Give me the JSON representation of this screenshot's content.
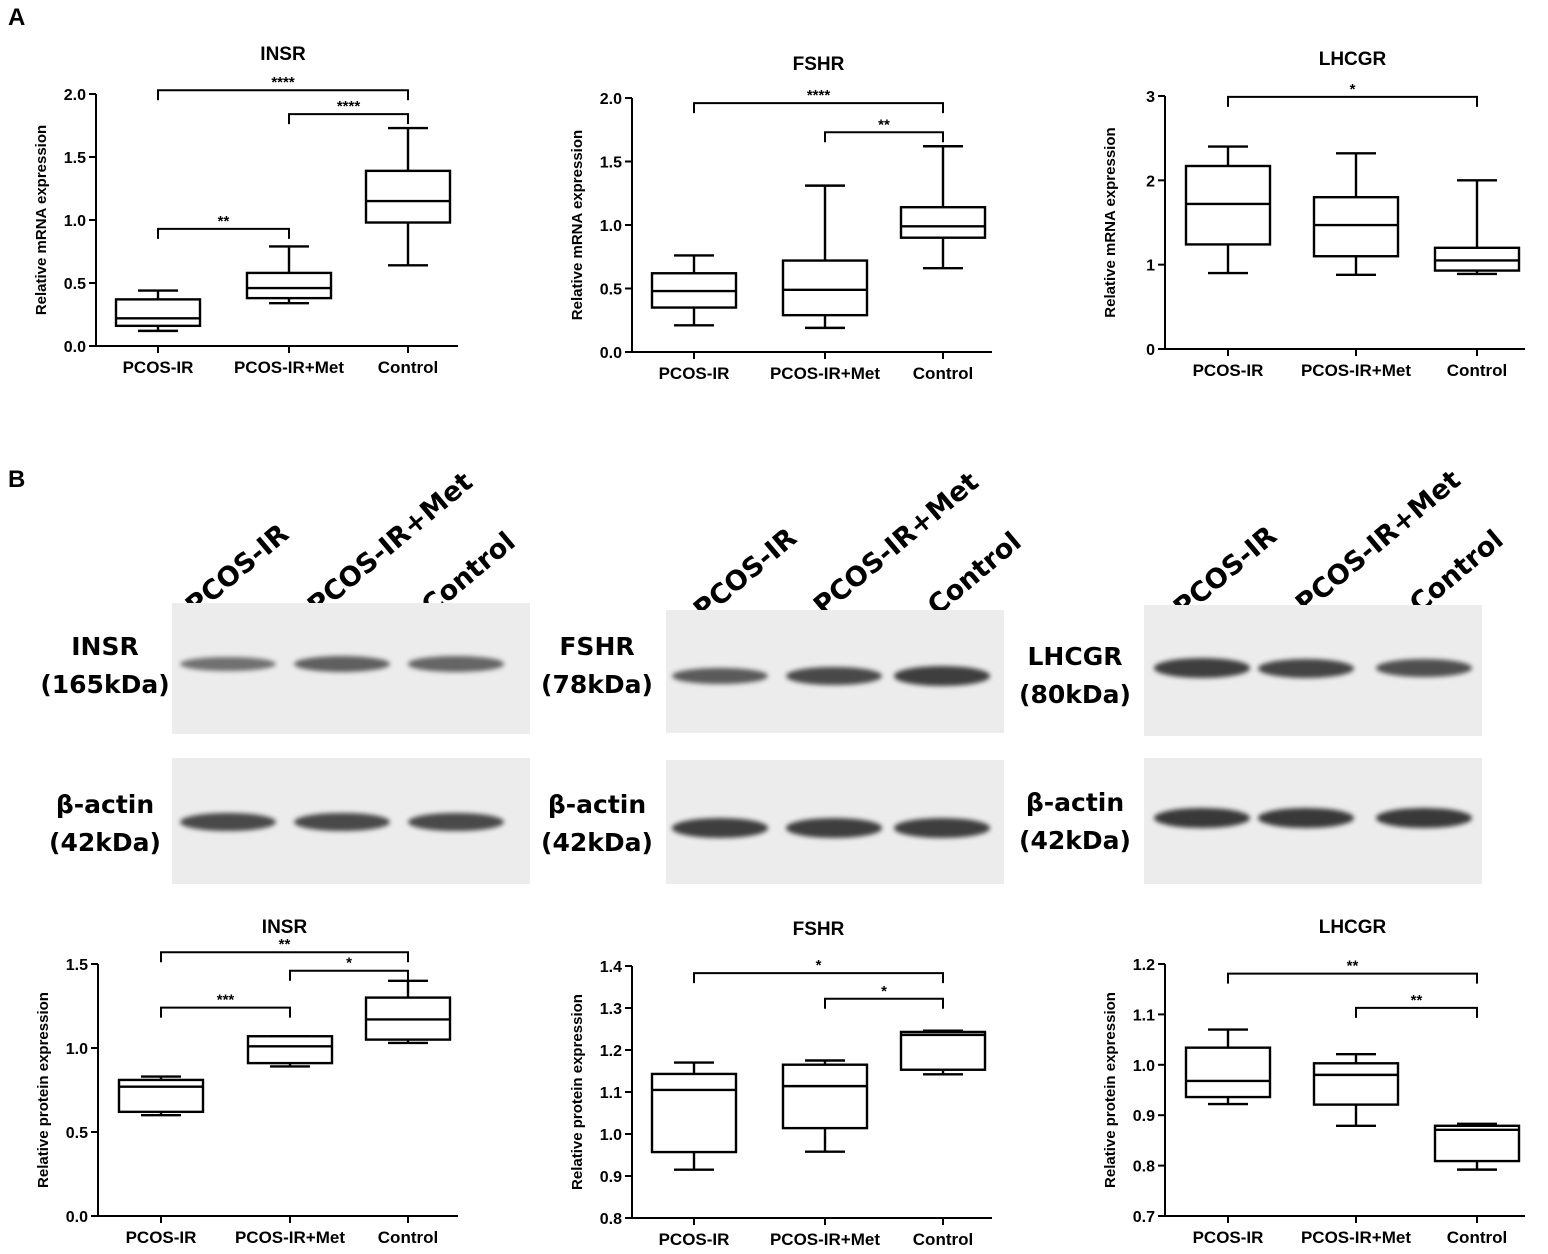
{
  "panels": {
    "a": "A",
    "b": "B"
  },
  "chart_data": [
    {
      "type": "box",
      "panel": "A",
      "title": "INSR",
      "ylabel": "Relative mRNA expression",
      "categories": [
        "PCOS-IR",
        "PCOS-IR+Met",
        "Control"
      ],
      "ylim": [
        0,
        2.0
      ],
      "yticks": [
        "0.0",
        "0.5",
        "1.0",
        "1.5",
        "2.0"
      ],
      "boxes": [
        {
          "min": 0.12,
          "q1": 0.16,
          "median": 0.22,
          "q3": 0.37,
          "max": 0.44
        },
        {
          "min": 0.34,
          "q1": 0.38,
          "median": 0.46,
          "q3": 0.58,
          "max": 0.79
        },
        {
          "min": 0.64,
          "q1": 0.98,
          "median": 1.15,
          "q3": 1.39,
          "max": 1.73
        }
      ],
      "significance": [
        {
          "from": 0,
          "to": 2,
          "y": 2.03,
          "label": "****"
        },
        {
          "from": 1,
          "to": 2,
          "y": 1.84,
          "label": "****"
        },
        {
          "from": 0,
          "to": 1,
          "y": 0.93,
          "label": "**"
        }
      ]
    },
    {
      "type": "box",
      "panel": "A",
      "title": "FSHR",
      "ylabel": "Relative mRNA expression",
      "categories": [
        "PCOS-IR",
        "PCOS-IR+Met",
        "Control"
      ],
      "ylim": [
        0,
        2.0
      ],
      "yticks": [
        "0.0",
        "0.5",
        "1.0",
        "1.5",
        "2.0"
      ],
      "boxes": [
        {
          "min": 0.21,
          "q1": 0.35,
          "median": 0.48,
          "q3": 0.62,
          "max": 0.76
        },
        {
          "min": 0.19,
          "q1": 0.29,
          "median": 0.49,
          "q3": 0.72,
          "max": 1.31
        },
        {
          "min": 0.66,
          "q1": 0.9,
          "median": 0.99,
          "q3": 1.14,
          "max": 1.62
        }
      ],
      "significance": [
        {
          "from": 0,
          "to": 2,
          "y": 1.96,
          "label": "****"
        },
        {
          "from": 1,
          "to": 2,
          "y": 1.73,
          "label": "**"
        }
      ]
    },
    {
      "type": "box",
      "panel": "A",
      "title": "LHCGR",
      "ylabel": "Relative mRNA expression",
      "categories": [
        "PCOS-IR",
        "PCOS-IR+Met",
        "Control"
      ],
      "ylim": [
        0,
        3
      ],
      "yticks": [
        "0",
        "1",
        "2",
        "3"
      ],
      "boxes": [
        {
          "min": 0.9,
          "q1": 1.24,
          "median": 1.72,
          "q3": 2.17,
          "max": 2.4
        },
        {
          "min": 0.88,
          "q1": 1.1,
          "median": 1.47,
          "q3": 1.8,
          "max": 2.32
        },
        {
          "min": 0.89,
          "q1": 0.93,
          "median": 1.05,
          "q3": 1.2,
          "max": 2.0
        }
      ],
      "significance": [
        {
          "from": 0,
          "to": 2,
          "y": 2.99,
          "label": "*"
        }
      ]
    },
    {
      "type": "box",
      "panel": "B",
      "title": "INSR",
      "ylabel": "Relative protein expression",
      "categories": [
        "PCOS-IR",
        "PCOS-IR+Met",
        "Control"
      ],
      "ylim": [
        0,
        1.5
      ],
      "yticks": [
        "0.0",
        "0.5",
        "1.0",
        "1.5"
      ],
      "boxes": [
        {
          "min": 0.6,
          "q1": 0.62,
          "median": 0.77,
          "q3": 0.81,
          "max": 0.83
        },
        {
          "min": 0.89,
          "q1": 0.91,
          "median": 1.01,
          "q3": 1.07,
          "max": 1.07
        },
        {
          "min": 1.03,
          "q1": 1.05,
          "median": 1.17,
          "q3": 1.3,
          "max": 1.4
        }
      ],
      "significance": [
        {
          "from": 0,
          "to": 2,
          "y": 1.57,
          "label": "**"
        },
        {
          "from": 1,
          "to": 2,
          "y": 1.46,
          "label": "*"
        },
        {
          "from": 0,
          "to": 1,
          "y": 1.24,
          "label": "***"
        }
      ]
    },
    {
      "type": "box",
      "panel": "B",
      "title": "FSHR",
      "ylabel": "Relative protein expression",
      "categories": [
        "PCOS-IR",
        "PCOS-IR+Met",
        "Control"
      ],
      "ylim": [
        0.8,
        1.4
      ],
      "yticks": [
        "0.8",
        "0.9",
        "1.0",
        "1.1",
        "1.2",
        "1.3",
        "1.4"
      ],
      "boxes": [
        {
          "min": 0.915,
          "q1": 0.957,
          "median": 1.105,
          "q3": 1.143,
          "max": 1.17
        },
        {
          "min": 0.958,
          "q1": 1.014,
          "median": 1.114,
          "q3": 1.165,
          "max": 1.175
        },
        {
          "min": 1.142,
          "q1": 1.153,
          "median": 1.236,
          "q3": 1.243,
          "max": 1.246
        }
      ],
      "significance": [
        {
          "from": 0,
          "to": 2,
          "y": 1.383,
          "label": "*"
        },
        {
          "from": 1,
          "to": 2,
          "y": 1.322,
          "label": "*"
        }
      ]
    },
    {
      "type": "box",
      "panel": "B",
      "title": "LHCGR",
      "ylabel": "Relative protein expression",
      "categories": [
        "PCOS-IR",
        "PCOS-IR+Met",
        "Control"
      ],
      "ylim": [
        0.7,
        1.2
      ],
      "yticks": [
        "0.7",
        "0.8",
        "0.9",
        "1.0",
        "1.1",
        "1.2"
      ],
      "boxes": [
        {
          "min": 0.922,
          "q1": 0.936,
          "median": 0.968,
          "q3": 1.034,
          "max": 1.07
        },
        {
          "min": 0.879,
          "q1": 0.921,
          "median": 0.98,
          "q3": 1.003,
          "max": 1.021
        },
        {
          "min": 0.792,
          "q1": 0.809,
          "median": 0.871,
          "q3": 0.879,
          "max": 0.883
        }
      ],
      "significance": [
        {
          "from": 0,
          "to": 2,
          "y": 1.181,
          "label": "**"
        },
        {
          "from": 1,
          "to": 2,
          "y": 1.113,
          "label": "**"
        }
      ]
    }
  ],
  "blots": [
    {
      "lanes": [
        "PCOS-IR",
        "PCOS-IR+Met",
        "Control"
      ],
      "target_label": [
        "INSR",
        "(165kDa)"
      ],
      "control_label": [
        "β-actin",
        "(42kDa)"
      ],
      "target_band_intensity": [
        0.35,
        0.5,
        0.45
      ],
      "control_band_intensity": [
        0.7,
        0.7,
        0.7
      ]
    },
    {
      "lanes": [
        "PCOS-IR",
        "PCOS-IR+Met",
        "Control"
      ],
      "target_label": [
        "FSHR",
        "(78kDa)"
      ],
      "control_label": [
        "β-actin",
        "(42kDa)"
      ],
      "target_band_intensity": [
        0.55,
        0.7,
        0.8
      ],
      "control_band_intensity": [
        0.8,
        0.8,
        0.8
      ]
    },
    {
      "lanes": [
        "PCOS-IR",
        "PCOS-IR+Met",
        "Control"
      ],
      "target_label": [
        "LHCGR",
        "(80kDa)"
      ],
      "control_label": [
        "β-actin",
        "(42kDa)"
      ],
      "target_band_intensity": [
        0.8,
        0.75,
        0.65
      ],
      "control_band_intensity": [
        0.85,
        0.85,
        0.85
      ]
    }
  ]
}
